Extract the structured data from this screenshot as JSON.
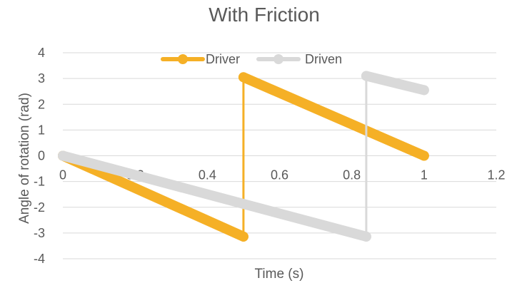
{
  "chart_data": {
    "type": "scatter",
    "title": "With Friction",
    "xlabel": "Time (s)",
    "ylabel": "Angle of rotation (rad)",
    "xlim": [
      0,
      1.2
    ],
    "ylim": [
      -4,
      4
    ],
    "x_ticks": [
      0,
      0.2,
      0.4,
      0.6,
      0.8,
      1,
      1.2
    ],
    "x_tick_labels": [
      "0",
      "0.2",
      "0.4",
      "0.6",
      "0.8",
      "1",
      "1.2"
    ],
    "y_ticks": [
      -4,
      -3,
      -2,
      -1,
      0,
      1,
      2,
      3,
      4
    ],
    "y_tick_labels": [
      "-4",
      "-3",
      "-2",
      "-1",
      "0",
      "1",
      "2",
      "3",
      "4"
    ],
    "grid": true,
    "legend_position": "top",
    "series": [
      {
        "name": "Driver",
        "color": "#F5B026",
        "x": [
          0,
          0.5,
          0.5,
          1.0
        ],
        "y": [
          0,
          -3.14,
          3.05,
          0
        ]
      },
      {
        "name": "Driven",
        "color": "#D9D9D9",
        "x": [
          0,
          0.84,
          0.84,
          1.0
        ],
        "y": [
          0,
          -3.14,
          3.1,
          2.55
        ]
      }
    ]
  }
}
